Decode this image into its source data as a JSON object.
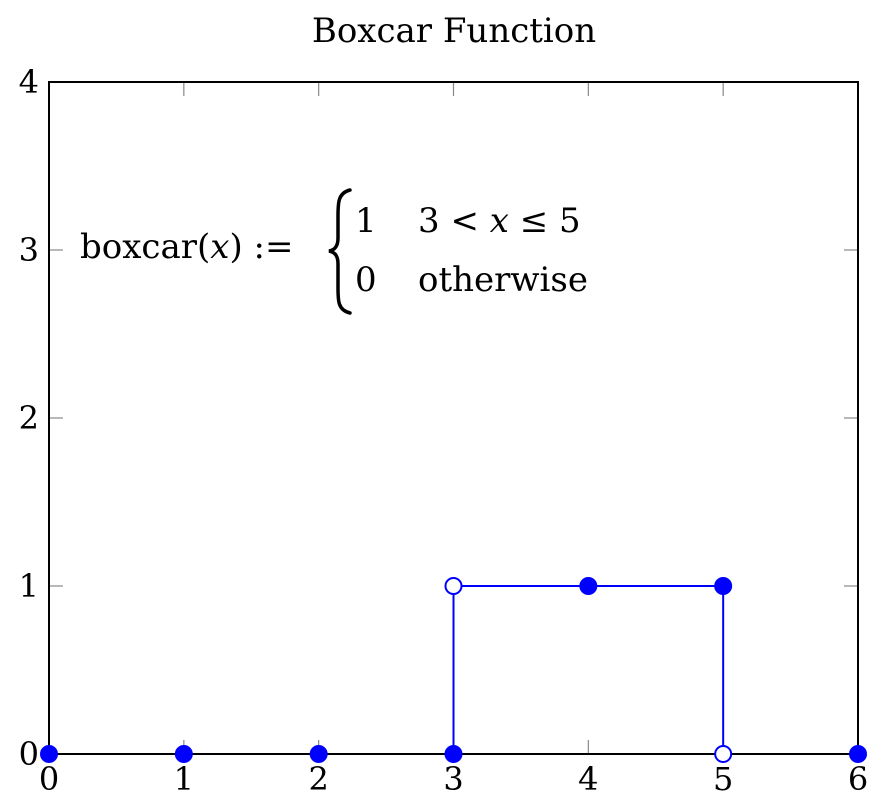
{
  "chart_data": {
    "type": "line",
    "title": "Boxcar Function",
    "xlabel": "",
    "ylabel": "",
    "xlim": [
      0,
      6
    ],
    "ylim": [
      0,
      4
    ],
    "x_ticks": [
      "0",
      "1",
      "2",
      "3",
      "4",
      "5",
      "6"
    ],
    "y_ticks": [
      "0",
      "1",
      "2",
      "3",
      "4"
    ],
    "grid": false,
    "series_color": "#0000ff",
    "segments": [
      {
        "from": [
          0,
          0
        ],
        "to": [
          3,
          0
        ]
      },
      {
        "from": [
          3,
          0
        ],
        "to": [
          3,
          1
        ]
      },
      {
        "from": [
          3,
          1
        ],
        "to": [
          5,
          1
        ]
      },
      {
        "from": [
          5,
          1
        ],
        "to": [
          5,
          0
        ]
      },
      {
        "from": [
          5,
          0
        ],
        "to": [
          6,
          0
        ]
      }
    ],
    "points": [
      {
        "x": 0,
        "y": 0,
        "filled": true
      },
      {
        "x": 1,
        "y": 0,
        "filled": true
      },
      {
        "x": 2,
        "y": 0,
        "filled": true
      },
      {
        "x": 3,
        "y": 0,
        "filled": true
      },
      {
        "x": 3,
        "y": 1,
        "filled": false
      },
      {
        "x": 4,
        "y": 1,
        "filled": true
      },
      {
        "x": 5,
        "y": 1,
        "filled": true
      },
      {
        "x": 5,
        "y": 0,
        "filled": false
      },
      {
        "x": 6,
        "y": 0,
        "filled": true
      }
    ],
    "annotation": {
      "lhs": "boxcar(",
      "lhs_var": "x",
      "lhs_end": ") :=",
      "case1_value": "1",
      "case1_lhs": "3 <",
      "case1_var": "x",
      "case1_rhs": "≤ 5",
      "case2_value": "0",
      "case2_condition": "otherwise"
    }
  }
}
